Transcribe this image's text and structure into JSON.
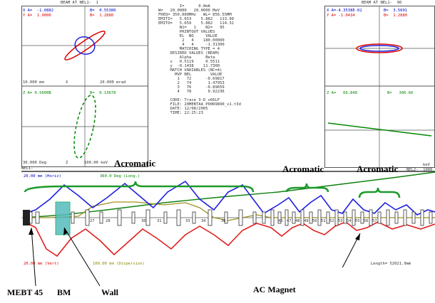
{
  "left_plot": {
    "title": "BEAM AT NEL1-  1",
    "x_twiss_a": "X A=  -1.0882",
    "x_twiss_b": "B=  0.55380",
    "y_twiss_a": "Y A=  1.9000",
    "y_twiss_b": "B=  1.2880",
    "x_scale": "10.000 mm",
    "x_axis": "X",
    "xp_scale": "20.000 mrad",
    "z_twiss_a": "Z A= 0.5600B",
    "z_twiss_b": "B=  0.13678",
    "z_scale": "30.000 Deg",
    "z_axis": "Z",
    "e_scale": "100.00 keV"
  },
  "right_plot": {
    "title": "BEAM AT NEL1-  96",
    "x_twiss_a": "X A=-4.3538E-02",
    "x_twiss_b": "B=  3.5601",
    "y_twiss_a": "Y A= -1.0434",
    "y_twiss_b": "B=  1.2880",
    "z_twiss_a": "Z A=   66.848",
    "z_twiss_b": "B=   306.66",
    "e_scale": "keV",
    "trail_text": "N=    100"
  },
  "center_text": {
    "lines": [
      "         I=      0.0mA",
      "W=   20.0000   20.0000 MeV",
      "FREQ= 350.000MHz   WL= 856.55MM",
      "EMITI=   5.653    5.882   113.90",
      "EMITO=   5.659    5.882   114.32",
      "         N1=   1    N2=   95",
      "         PRINTOUT VALUES",
      "         EL  NO     VALUE",
      "          2   4    180.00000",
      "          4   4     -1.31300",
      "         MATCHING TYPE = 4",
      "     DESIRED VALUES (BEAM)",
      "         Alpha      Beta",
      "     x   0.5119     0.5511",
      "     y  -0.1438    11.7300",
      "     MATCH VARIABLES (NC=4)",
      "       MVP NEL        VALUE",
      "        1   72      -0.69817",
      "        2   74       1.47953",
      "        3   76      -0.89659",
      "        4   78       0.92236",
      "",
      "     CODE: Trace 3-D v66LF",
      "     FILE: 20MEBTAA P00R9890_v1.t3d",
      "     DATE: 12/08/2005",
      "     TIME: 22:25:23"
    ]
  },
  "beamline": {
    "horiz_label": "20.00 mm (Horiz)",
    "long_label": "360.0 Deg (Long.)",
    "vert_label": "20.00 mm (Vert)",
    "disp_label": "100.00 mm (Dispersion)",
    "length_label": "Length= 52021.9mm",
    "element_numbers": [
      "27",
      "28",
      "30",
      "31",
      "33",
      "34",
      "36",
      "46",
      "47",
      "48",
      "49",
      "50",
      "51",
      "52",
      "53",
      "54",
      "55",
      "56",
      "57"
    ],
    "left_mark": "NEL1-",
    "right_mark": "NEL2-  1000"
  },
  "annotations": {
    "acromatic_1": "Acromatic",
    "acromatic_2": "Acromatic",
    "acromatic_3": "Acromatic",
    "mebt": "MEBT 45",
    "bm": "BM",
    "wall": "Wall",
    "ac_magnet": "AC Magnet"
  },
  "colors": {
    "horiz": "#2020e0",
    "vert": "#e02020",
    "long": "#108010",
    "disp": "#a09020",
    "wall": "#3aa"
  }
}
